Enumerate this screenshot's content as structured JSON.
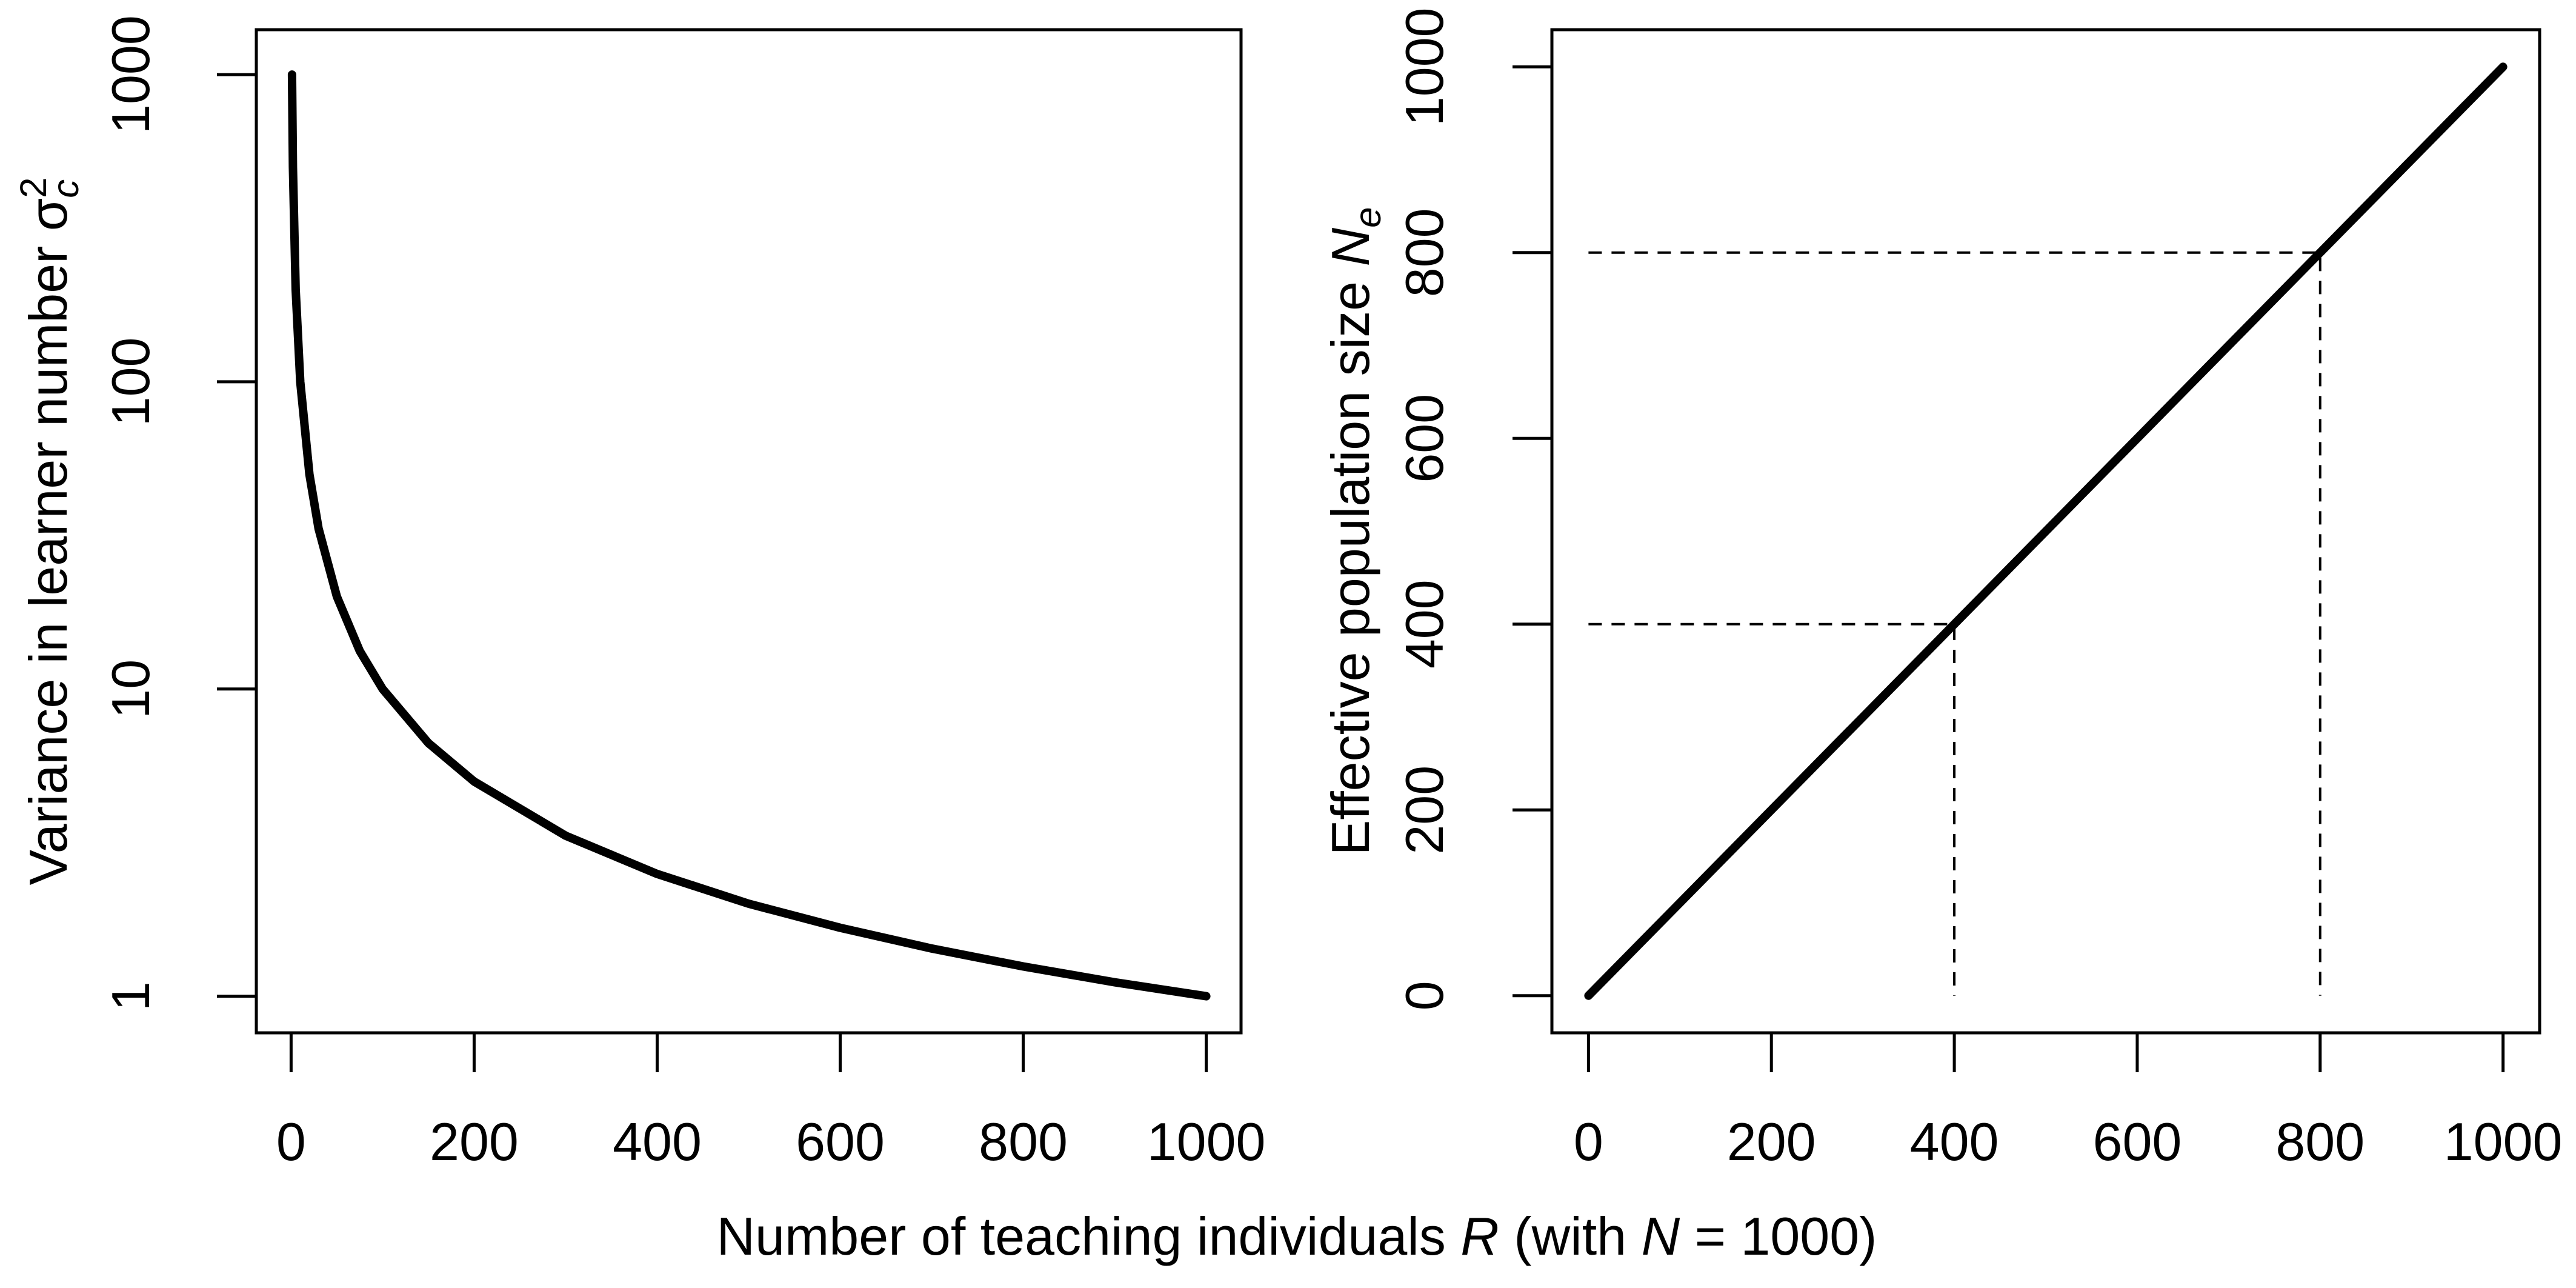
{
  "chart_data": [
    {
      "type": "line",
      "log_y": true,
      "ylabel": [
        {
          "text": "Variance in learner number  "
        },
        {
          "text": "σ"
        },
        {
          "text": "c",
          "italic": true,
          "sub": true
        },
        {
          "text": "2",
          "sup": true
        }
      ],
      "x": [
        1,
        2,
        5,
        10,
        20,
        30,
        50,
        75,
        100,
        150,
        200,
        300,
        400,
        500,
        600,
        700,
        800,
        900,
        1000
      ],
      "values": [
        1000,
        500,
        200,
        100,
        50,
        33.3,
        20,
        13.3,
        10,
        6.67,
        5,
        3.33,
        2.5,
        2,
        1.67,
        1.43,
        1.25,
        1.11,
        1
      ],
      "color": "#000000",
      "xlim": [
        -38,
        1038
      ],
      "xticks": [
        0,
        200,
        400,
        600,
        800,
        1000
      ],
      "ylim": [
        0.76,
        1400
      ],
      "yticks": [
        1,
        10,
        100,
        1000
      ]
    },
    {
      "type": "line",
      "log_y": false,
      "ylabel": [
        {
          "text": "Effective population size  "
        },
        {
          "text": "N",
          "italic": true
        },
        {
          "text": "e",
          "italic": true,
          "sub": true
        }
      ],
      "x": [
        0,
        1000
      ],
      "values": [
        0,
        1000
      ],
      "color": "#000000",
      "guides": [
        {
          "x": 400,
          "y": 400
        },
        {
          "x": 800,
          "y": 800
        }
      ],
      "xlim": [
        -40,
        1040
      ],
      "xticks": [
        0,
        200,
        400,
        600,
        800,
        1000
      ],
      "ylim": [
        -40,
        1040
      ],
      "yticks": [
        0,
        200,
        400,
        600,
        800,
        1000
      ]
    }
  ],
  "xlabel": [
    {
      "text": "Number of teaching individuals "
    },
    {
      "text": "R",
      "italic": true
    },
    {
      "text": " (with "
    },
    {
      "text": "N",
      "italic": true
    },
    {
      "text": " = 1000)"
    }
  ]
}
